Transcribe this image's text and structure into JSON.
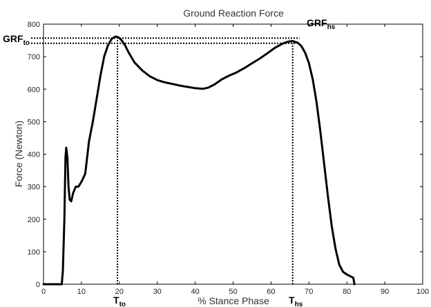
{
  "chart_data": {
    "type": "line",
    "title": "Ground Reaction Force",
    "xlabel": "% Stance Phase",
    "ylabel": "Force (Newton)",
    "xlim": [
      0,
      100
    ],
    "ylim": [
      0,
      800
    ],
    "xticks": [
      0,
      10,
      20,
      30,
      40,
      50,
      60,
      70,
      80,
      90,
      100
    ],
    "yticks": [
      0,
      100,
      200,
      300,
      400,
      500,
      600,
      700,
      800
    ],
    "grid": false,
    "legend": "none",
    "line_color": "#000000",
    "series": [
      {
        "x": [
          0,
          4.8,
          5.1,
          5.5,
          5.8,
          6.0,
          6.3,
          6.6,
          6.9,
          7.3,
          7.8,
          8.5,
          9.2,
          10.0,
          11.0,
          12.0,
          13.0,
          14.0,
          15.0,
          16.0,
          17.0,
          18.0,
          19.0,
          19.7,
          20.5,
          21.5,
          22.5,
          24.0,
          26.0,
          28.0,
          30.0,
          32.0,
          34.0,
          36.0,
          38.0,
          40.0,
          42.0,
          43.5,
          45.0,
          47.0,
          49.0,
          51.0,
          53.0,
          55.0,
          57.0,
          59.0,
          61.0,
          63.0,
          64.5,
          65.7,
          67.0,
          68.0,
          69.0,
          70.0,
          71.0,
          72.0,
          73.0,
          74.0,
          75.0,
          76.0,
          77.0,
          78.0,
          79.0,
          80.0,
          81.0,
          81.7,
          82.0
        ],
        "y": [
          0,
          0,
          40,
          200,
          390,
          420,
          390,
          300,
          260,
          255,
          280,
          300,
          300,
          315,
          340,
          440,
          500,
          570,
          640,
          700,
          735,
          755,
          762,
          760,
          752,
          735,
          712,
          682,
          658,
          640,
          628,
          621,
          616,
          611,
          607,
          603,
          601,
          605,
          614,
          630,
          642,
          652,
          665,
          680,
          694,
          710,
          727,
          740,
          746,
          748,
          743,
          733,
          712,
          680,
          630,
          560,
          470,
          370,
          270,
          180,
          110,
          60,
          38,
          30,
          24,
          20,
          0
        ]
      }
    ],
    "reference_lines": [
      {
        "orientation": "horizontal",
        "y": 757,
        "style": "dotted"
      },
      {
        "orientation": "horizontal",
        "y": 741,
        "style": "dotted"
      },
      {
        "orientation": "vertical",
        "x": 19.5,
        "style": "dotted"
      },
      {
        "orientation": "vertical",
        "x": 65.7,
        "style": "dotted"
      }
    ],
    "annotations": [
      {
        "main": "GRF",
        "sub": "to",
        "position": "left of upper dotted line"
      },
      {
        "main": "GRF",
        "sub": "hs",
        "position": "above second peak"
      },
      {
        "main": "T",
        "sub": "to",
        "position": "below first dotted vertical"
      },
      {
        "main": "T",
        "sub": "hs",
        "position": "below second dotted vertical"
      }
    ]
  }
}
